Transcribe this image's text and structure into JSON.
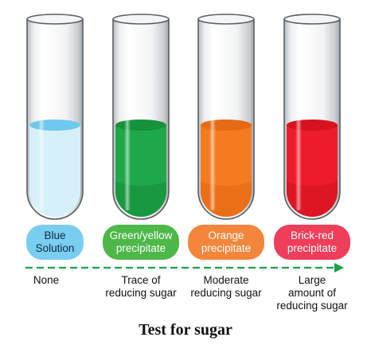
{
  "title": "Test for sugar",
  "tubes": [
    {
      "liquid_color": "#d6f0fa",
      "surface_color": "#6fc8ee",
      "label_lines": [
        "Blue",
        "Solution"
      ],
      "label_bg": "#79cdf0",
      "result_lines": [
        "None"
      ]
    },
    {
      "liquid_color": "#1fa84a",
      "surface_color": "#15923c",
      "label_lines": [
        "Green/yellow",
        "precipitate"
      ],
      "label_bg": "#4db848",
      "result_lines": [
        "Trace of",
        "reducing sugar"
      ]
    },
    {
      "liquid_color": "#f47c20",
      "surface_color": "#e66a14",
      "label_lines": [
        "Orange",
        "precipitate"
      ],
      "label_bg": "#f3863a",
      "result_lines": [
        "Moderate",
        "reducing sugar"
      ]
    },
    {
      "liquid_color": "#ec1c2b",
      "surface_color": "#d8121f",
      "label_lines": [
        "Brick-red",
        "precipitate"
      ],
      "label_bg": "#ef3e5a",
      "result_lines": [
        "Large",
        "amount of",
        "reducing sugar"
      ]
    }
  ],
  "arrow_color": "#1aa34a"
}
